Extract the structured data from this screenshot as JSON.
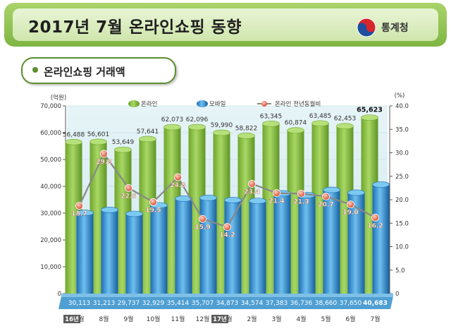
{
  "banner": {
    "title": "2017년 7월 온라인쇼핑 동향",
    "logo_text": "통계청",
    "logo_icon": "taegeuk-emblem-icon"
  },
  "subtitle": "온라인쇼핑 거래액",
  "colors": {
    "online": "#8cc63f",
    "mobile": "#3c97d8",
    "line": "#888888",
    "marker": "#e8593c"
  },
  "chart_data": {
    "type": "bar",
    "left_unit": "(억원)",
    "right_unit": "(%)",
    "left_ticks": [
      "0",
      "10,000",
      "20,000",
      "30,000",
      "40,000",
      "50,000",
      "60,000",
      "70,000"
    ],
    "right_ticks": [
      "0",
      "5.0",
      "10.0",
      "15.0",
      "20.0",
      "25.0",
      "30.0",
      "35.0",
      "40.0"
    ],
    "ylim": [
      0,
      70000
    ],
    "y2lim": [
      0,
      40
    ],
    "categories": [
      "7월",
      "8월",
      "9월",
      "10월",
      "11월",
      "12월",
      "1월",
      "2월",
      "3월",
      "4월",
      "5월",
      "6월",
      "7월"
    ],
    "year_marks": [
      {
        "index": 0,
        "label": "16년"
      },
      {
        "index": 6,
        "label": "17년"
      }
    ],
    "series": [
      {
        "name": "온라인",
        "kind": "bar",
        "values": [
          56488,
          56601,
          53649,
          57641,
          62073,
          62096,
          59990,
          58822,
          63345,
          60874,
          63485,
          62453,
          65623
        ],
        "labels": [
          "56,488",
          "56,601",
          "53,649",
          "57,641",
          "62,073",
          "62,096",
          "59,990",
          "58,822",
          "63,345",
          "60,874",
          "63,485",
          "62,453",
          "65,623"
        ]
      },
      {
        "name": "모바일",
        "kind": "bar",
        "values": [
          30113,
          31213,
          29737,
          32929,
          35414,
          35707,
          34873,
          34574,
          37383,
          36736,
          38660,
          37650,
          40683
        ],
        "labels": [
          "30,113",
          "31,213",
          "29,737",
          "32,929",
          "35,414",
          "35,707",
          "34,873",
          "34,574",
          "37,383",
          "36,736",
          "38,660",
          "37,650",
          "40,683"
        ]
      },
      {
        "name": "온라인 전년동월비",
        "kind": "line",
        "axis": "right",
        "values": [
          18.7,
          29.8,
          22.5,
          19.5,
          24.8,
          15.9,
          14.2,
          23.4,
          21.4,
          21.3,
          20.7,
          19.0,
          16.2
        ],
        "labels": [
          "18.7",
          "29.8",
          "22.5",
          "19.5",
          "24.8",
          "15.9",
          "14.2",
          "23.4",
          "21.4",
          "21.3",
          "20.7",
          "19.0",
          "16.2"
        ]
      }
    ],
    "legend_position": "top"
  }
}
